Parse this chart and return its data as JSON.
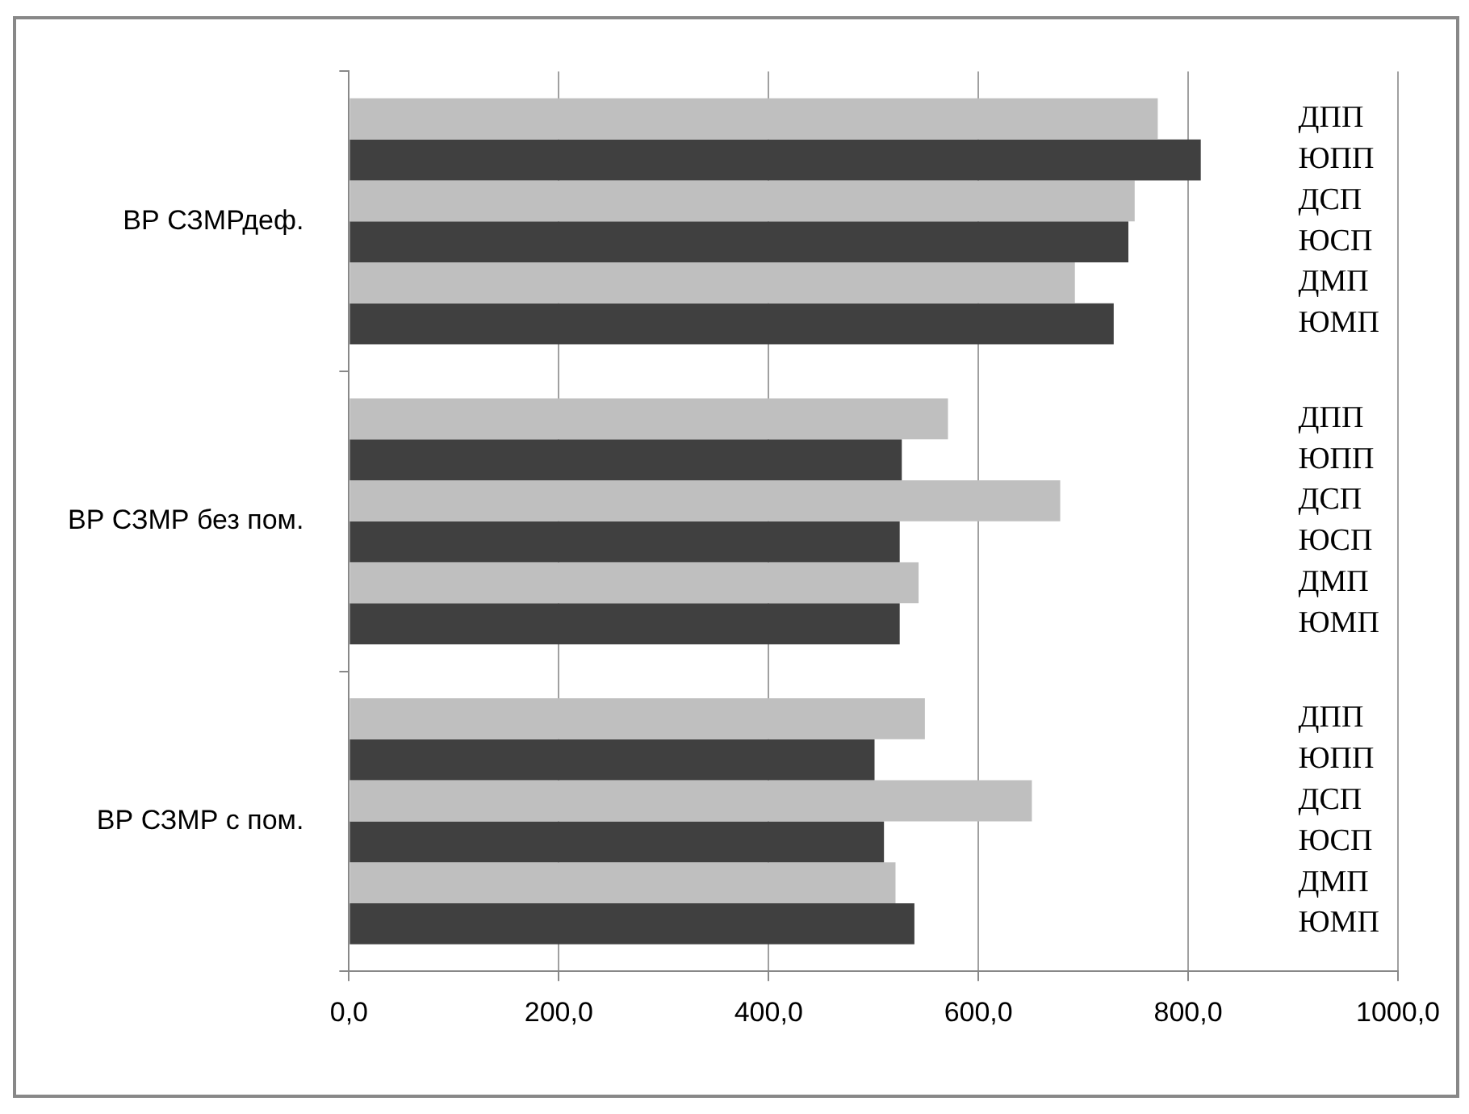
{
  "chart_data": {
    "type": "bar",
    "orientation": "horizontal",
    "categories": [
      "ВР СЗМРдеф.",
      "ВР СЗМР без пом.",
      "ВР СЗМР с пом."
    ],
    "series": [
      {
        "name": "ДПП",
        "color": "#bfbfbf",
        "values": [
          771,
          571,
          549
        ]
      },
      {
        "name": "ЮПП",
        "color": "#404040",
        "values": [
          812,
          527,
          501
        ]
      },
      {
        "name": "ДСП",
        "color": "#bfbfbf",
        "values": [
          749,
          678,
          651
        ]
      },
      {
        "name": "ЮСП",
        "color": "#404040",
        "values": [
          743,
          525,
          510
        ]
      },
      {
        "name": "ДМП",
        "color": "#bfbfbf",
        "values": [
          692,
          543,
          521
        ]
      },
      {
        "name": "ЮМП",
        "color": "#404040",
        "values": [
          729,
          525,
          539
        ]
      }
    ],
    "xlim": [
      0,
      1000
    ],
    "xticks": [
      {
        "value": 0,
        "label": "0,0"
      },
      {
        "value": 200,
        "label": "200,0"
      },
      {
        "value": 400,
        "label": "400,0"
      },
      {
        "value": 600,
        "label": "600,0"
      },
      {
        "value": 800,
        "label": "800,0"
      },
      {
        "value": 1000,
        "label": "1000,0"
      }
    ],
    "grid": "x",
    "legend": false
  }
}
